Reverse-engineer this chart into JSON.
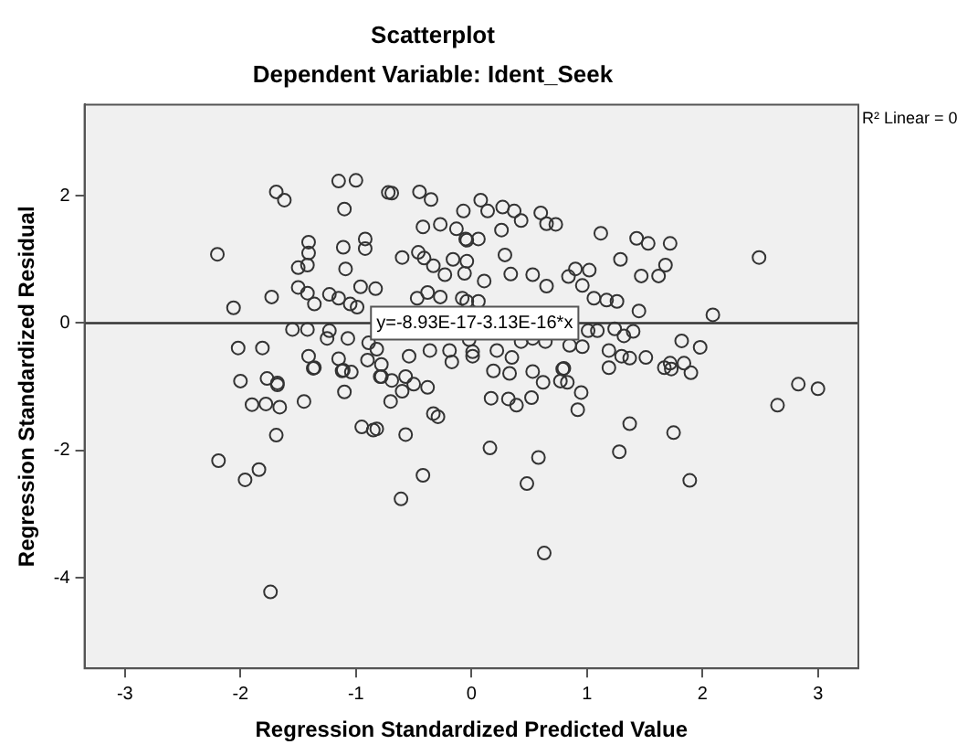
{
  "chart_data": {
    "type": "scatter",
    "title": "Scatterplot",
    "subtitle": "Dependent Variable: Ident_Seek",
    "xlabel": "Regression Standardized Predicted Value",
    "ylabel": "Regression Standardized Residual",
    "xlim": [
      -3.35,
      3.35
    ],
    "ylim": [
      -5.42,
      3.43
    ],
    "xticks": [
      -3,
      -2,
      -1,
      0,
      1,
      2,
      3
    ],
    "yticks": [
      -4,
      -2,
      0,
      2
    ],
    "grid": false,
    "legend": false,
    "marker": "circle",
    "series": [
      {
        "color": "#333333",
        "x": [
          -2.2,
          -2.06,
          -1.73,
          -1.69,
          -1.62,
          -1.15,
          -1.0,
          -1.1,
          -1.41,
          -1.41,
          -1.5,
          -1.42,
          -1.11,
          -0.92,
          -0.92,
          -1.09,
          -0.96,
          -0.83,
          -1.5,
          -1.42,
          -1.36,
          -1.23,
          -1.15,
          -1.05,
          -0.99,
          -0.72,
          -0.69,
          -0.45,
          -0.35,
          -0.42,
          -0.27,
          -0.13,
          -0.07,
          -0.05,
          -0.6,
          -0.46,
          -0.41,
          -0.33,
          -0.23,
          -0.16,
          -0.04,
          -0.06,
          -0.47,
          -0.38,
          -0.27,
          -0.08,
          -1.55,
          -1.42,
          -1.23,
          -1.07,
          -1.25,
          -2.02,
          -1.81,
          -1.41,
          -1.36,
          -1.15,
          -1.11,
          -0.89,
          -0.82,
          -0.9,
          -0.78,
          -0.54,
          -0.36,
          -0.19,
          0.01,
          -2.0,
          -1.77,
          -1.68,
          -0.78,
          -0.57,
          -1.68,
          -1.9,
          -1.78,
          -1.66,
          -1.45,
          -1.69,
          -2.19,
          -1.96,
          -1.84,
          -1.74,
          -1.37,
          -1.12,
          -1.04,
          -1.1,
          -0.95,
          -0.85,
          -0.82,
          -0.79,
          -0.69,
          -0.7,
          -0.6,
          -0.5,
          -0.38,
          -0.57,
          -0.33,
          -0.29,
          -0.42,
          -0.61,
          -0.17,
          0.19,
          0.33,
          0.53,
          0.62,
          0.79,
          0.77,
          0.83,
          0.95,
          0.92,
          0.17,
          0.32,
          0.39,
          0.52,
          0.16,
          0.58,
          0.48,
          0.63,
          1.19,
          1.37,
          1.28,
          1.75,
          1.89,
          1.67,
          1.73,
          1.9,
          2.65,
          2.83,
          3.0,
          0.08,
          0.14,
          0.27,
          0.37,
          0.43,
          0.6,
          0.65,
          0.73,
          1.12,
          1.43,
          1.53,
          1.72,
          2.49,
          1.29,
          1.68,
          1.47,
          1.62,
          0.9,
          1.02,
          0.84,
          0.96,
          0.53,
          0.65,
          0.34,
          0.11,
          0.29,
          -0.04,
          0.06,
          0.26,
          1.06,
          1.17,
          1.26,
          1.45,
          2.09,
          -0.04,
          0.06,
          -0.02,
          0.01,
          0.22,
          0.35,
          0.8,
          1.01,
          1.09,
          1.24,
          1.32,
          1.4,
          1.19,
          1.3,
          1.37,
          1.51,
          1.82,
          1.98,
          1.72,
          1.84,
          0.96,
          0.85,
          0.64,
          0.43,
          0.53
        ],
        "values": [
          1.08,
          0.24,
          0.41,
          2.06,
          1.93,
          2.23,
          2.24,
          1.79,
          1.27,
          1.1,
          0.87,
          0.91,
          1.19,
          1.32,
          1.17,
          0.85,
          0.57,
          0.54,
          0.56,
          0.47,
          0.3,
          0.45,
          0.39,
          0.3,
          0.25,
          2.05,
          2.04,
          2.06,
          1.94,
          1.51,
          1.55,
          1.48,
          1.76,
          1.32,
          1.03,
          1.11,
          1.02,
          0.9,
          0.76,
          1.0,
          0.97,
          0.78,
          0.39,
          0.48,
          0.41,
          0.39,
          -0.1,
          -0.1,
          -0.12,
          -0.24,
          -0.24,
          -0.39,
          -0.39,
          -0.52,
          -0.7,
          -0.56,
          -0.74,
          -0.31,
          -0.41,
          -0.58,
          -0.65,
          -0.52,
          -0.43,
          -0.43,
          -0.52,
          -0.91,
          -0.87,
          -0.94,
          -0.84,
          -0.84,
          -0.97,
          -1.28,
          -1.27,
          -1.32,
          -1.23,
          -1.76,
          -2.16,
          -2.46,
          -2.3,
          -4.22,
          -0.71,
          -0.75,
          -0.77,
          -1.08,
          -1.63,
          -1.68,
          -1.66,
          -0.84,
          -0.9,
          -1.23,
          -1.07,
          -0.96,
          -1.01,
          -1.75,
          -1.42,
          -1.47,
          -2.39,
          -2.76,
          -0.61,
          -0.75,
          -0.79,
          -0.76,
          -0.93,
          -0.72,
          -0.91,
          -0.93,
          -1.09,
          -1.36,
          -1.18,
          -1.19,
          -1.29,
          -1.17,
          -1.96,
          -2.11,
          -2.52,
          -3.61,
          -0.7,
          -1.58,
          -2.02,
          -1.72,
          -2.47,
          -0.7,
          -0.72,
          -0.78,
          -1.29,
          -0.96,
          -1.03,
          1.93,
          1.76,
          1.82,
          1.76,
          1.61,
          1.73,
          1.56,
          1.55,
          1.41,
          1.33,
          1.25,
          1.25,
          1.03,
          1.0,
          0.91,
          0.74,
          0.74,
          0.85,
          0.83,
          0.73,
          0.59,
          0.76,
          0.58,
          0.77,
          0.66,
          1.07,
          1.3,
          1.32,
          1.46,
          0.39,
          0.36,
          0.34,
          0.19,
          0.13,
          0.34,
          0.34,
          -0.26,
          -0.45,
          -0.43,
          -0.54,
          -0.71,
          -0.12,
          -0.12,
          -0.09,
          -0.2,
          -0.13,
          -0.43,
          -0.52,
          -0.55,
          -0.54,
          -0.28,
          -0.38,
          -0.63,
          -0.63,
          -0.37,
          -0.35,
          -0.29,
          -0.29,
          -0.24
        ]
      },
      {
        "type": "line",
        "marker": "none",
        "color": "#333333",
        "x": [
          -3.35,
          3.35
        ],
        "values": [
          0,
          0
        ]
      }
    ],
    "annotations": [
      {
        "text": "y=-8.93E-17-3.13E-16*x",
        "x": -0.87,
        "y": 0
      },
      "R² Linear = 0"
    ]
  }
}
